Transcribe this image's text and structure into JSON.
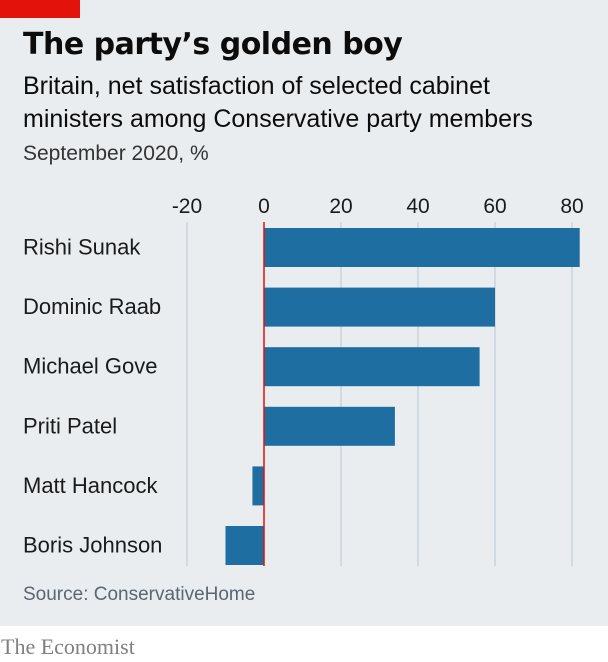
{
  "header": {
    "title": "The party’s golden boy",
    "subtitle": "Britain, net satisfaction of selected cabinet ministers among Conservative party members",
    "unit": "September 2020, %"
  },
  "footer": {
    "source": "Source: ConservativeHome",
    "brand": "The Economist"
  },
  "colors": {
    "bar": "#1f6ea1",
    "zero_line": "#e3120b",
    "grid": "#b7c6cf",
    "background": "#e9edf0",
    "brand_tag": "#e3120b"
  },
  "chart_data": {
    "type": "bar",
    "orientation": "horizontal",
    "categories": [
      "Rishi Sunak",
      "Dominic Raab",
      "Michael Gove",
      "Priti Patel",
      "Matt Hancock",
      "Boris Johnson"
    ],
    "values": [
      82,
      60,
      56,
      34,
      -3,
      -10
    ],
    "xlim": [
      -20,
      80
    ],
    "xticks": [
      -20,
      0,
      20,
      40,
      60,
      80
    ],
    "xtick_labels": [
      "-20",
      "0",
      "20",
      "40",
      "60",
      "80"
    ],
    "grid": true
  }
}
